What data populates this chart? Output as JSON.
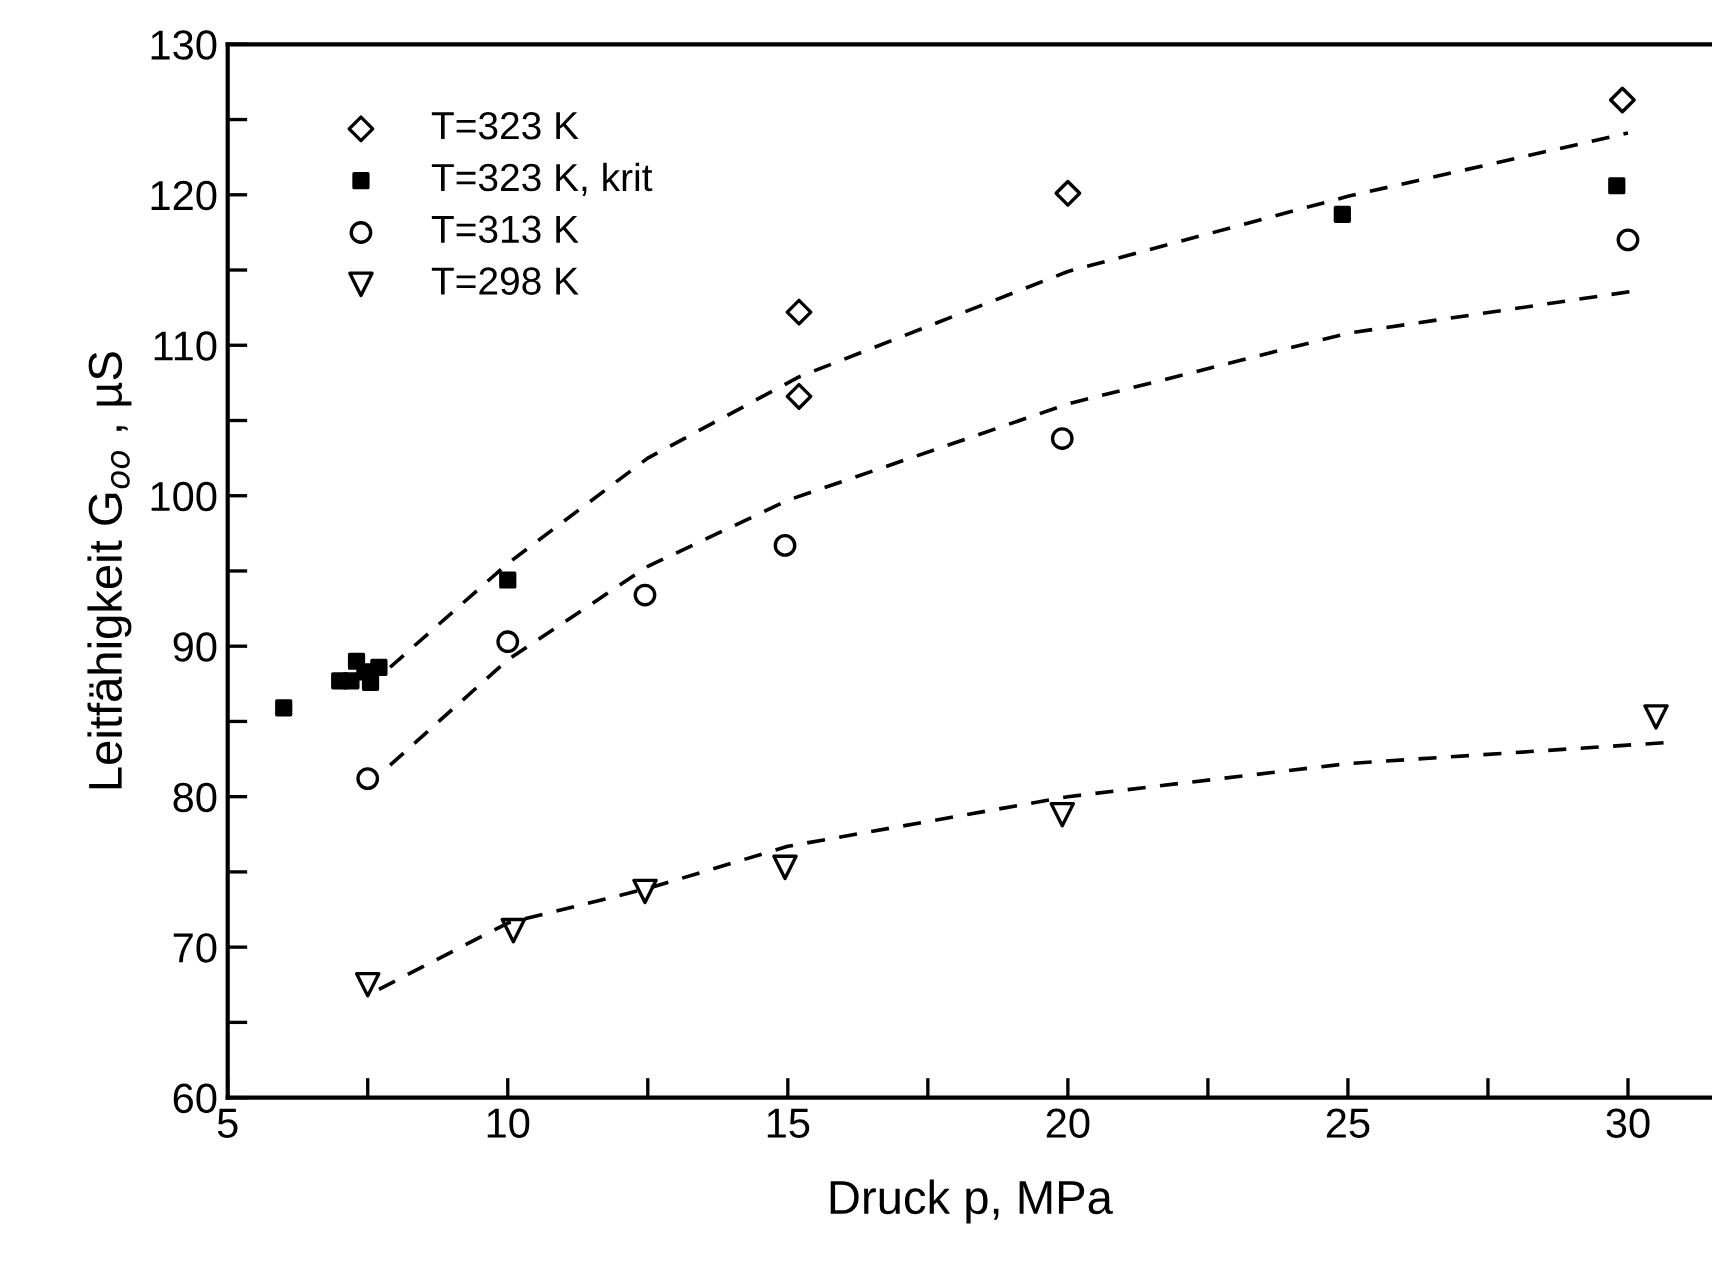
{
  "chart_data": {
    "type": "scatter",
    "xlabel": "Druck p, MPa",
    "ylabel": "Leitfähigkeit G$_{oo}$ , µS",
    "xlim": [
      5,
      31.5
    ],
    "ylim": [
      60,
      130
    ],
    "xticks": [
      5,
      {
        "value": 7.5,
        "label": null
      },
      10,
      {
        "value": 12.5,
        "label": null
      },
      15,
      {
        "value": 17.5,
        "label": null
      },
      20,
      {
        "value": 22.5,
        "label": null
      },
      25,
      {
        "value": 27.5,
        "label": null
      },
      30
    ],
    "yticks": [
      60,
      {
        "value": 65,
        "label": null
      },
      70,
      {
        "value": 75,
        "label": null
      },
      80,
      {
        "value": 85,
        "label": null
      },
      90,
      {
        "value": 95,
        "label": null
      },
      100,
      {
        "value": 105,
        "label": null
      },
      110,
      {
        "value": 115,
        "label": null
      },
      120,
      {
        "value": 125,
        "label": null
      },
      130
    ],
    "grid": false,
    "legend": "top left",
    "series": [
      {
        "name": "T=323 K",
        "color": "#000000",
        "marker": "diamond",
        "x": [
          15.2,
          15.2,
          20,
          29.9
        ],
        "values": [
          112.2,
          106.6,
          120.1,
          126.3
        ]
      },
      {
        "name": "T=323 K, krit",
        "color": "#000000",
        "marker": "square",
        "x": [
          6.0,
          7.0,
          7.2,
          7.3,
          7.45,
          7.55,
          7.7,
          10.0,
          24.9,
          29.8
        ],
        "values": [
          85.9,
          87.7,
          87.7,
          89.0,
          88.3,
          87.6,
          88.6,
          94.4,
          118.7,
          120.6
        ]
      },
      {
        "name": "T=313 K",
        "color": "#000000",
        "marker": "circle",
        "x": [
          7.5,
          10.0,
          12.45,
          14.95,
          19.9,
          30.0
        ],
        "values": [
          81.2,
          90.3,
          93.4,
          96.7,
          103.8,
          117.0
        ]
      },
      {
        "name": "T=298 K",
        "color": "#000000",
        "marker": "triangle",
        "x": [
          7.5,
          10.1,
          12.45,
          14.95,
          19.9,
          30.5
        ],
        "values": [
          67.5,
          71.1,
          73.7,
          75.3,
          78.8,
          85.3
        ]
      },
      {
        "type": "line",
        "color": "#000000",
        "line_style": "dashed",
        "x": [
          7.9,
          10,
          12.5,
          15.2,
          20,
          25,
          30
        ],
        "values": [
          88.6,
          95.5,
          102.5,
          107.9,
          114.9,
          119.9,
          124.1
        ]
      },
      {
        "type": "line",
        "color": "#000000",
        "line_style": "dashed",
        "x": [
          7.9,
          10,
          12.5,
          15,
          20,
          25,
          30.1
        ],
        "values": [
          82.1,
          89.1,
          95.3,
          99.7,
          106.1,
          110.8,
          113.6
        ]
      },
      {
        "type": "line",
        "color": "#000000",
        "line_style": "dashed",
        "x": [
          7.7,
          10,
          12.5,
          15,
          20,
          25,
          30.7
        ],
        "values": [
          67.2,
          71.6,
          73.9,
          76.7,
          80.0,
          82.2,
          83.6
        ]
      }
    ]
  }
}
